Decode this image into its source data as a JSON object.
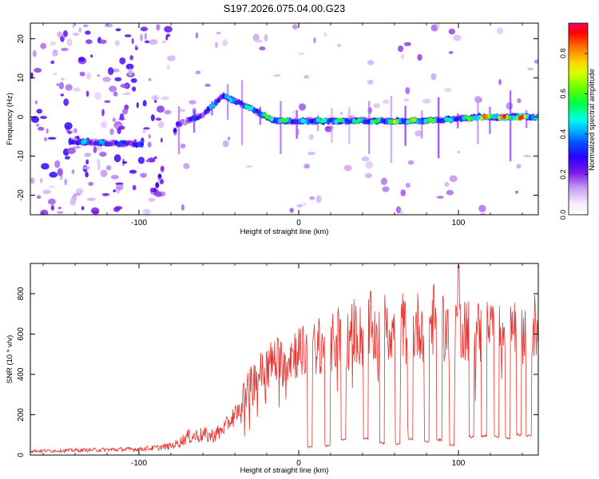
{
  "figure": {
    "title": "S197.2026.075.04.00.G23"
  },
  "chart_data": [
    {
      "type": "heatmap",
      "name": "spectrogram",
      "xlabel": "Height of straight line (km)",
      "ylabel": "Frequency (Hz)",
      "xlim": [
        -168,
        150
      ],
      "ylim": [
        -25,
        24
      ],
      "xticks": [
        -100,
        0,
        100
      ],
      "yticks": [
        -20,
        -10,
        0,
        10,
        20
      ],
      "colorbar": {
        "label": "Normalized spectral amplitude",
        "range": [
          0.0,
          0.95
        ],
        "ticks": [
          0.0,
          0.2,
          0.4,
          0.6,
          0.8
        ],
        "tick_labels": [
          "0.0",
          "0.2",
          "0.4",
          "0.6",
          "0.8"
        ]
      },
      "ridge": {
        "description_points": [
          {
            "x": -130,
            "y": -6.5,
            "a": 0.45
          },
          {
            "x": -95,
            "y": -7.0,
            "a": 0.35
          },
          {
            "x": -90,
            "y": -19.0,
            "a": 0.3
          },
          {
            "x": -76,
            "y": -2.0,
            "a": 0.3
          },
          {
            "x": -60,
            "y": 0.5,
            "a": 0.4
          },
          {
            "x": -47,
            "y": 5.5,
            "a": 0.5
          },
          {
            "x": -32,
            "y": 2.5,
            "a": 0.55
          },
          {
            "x": -15,
            "y": -1.0,
            "a": 0.7
          },
          {
            "x": 0,
            "y": -1.0,
            "a": 0.5
          },
          {
            "x": 20,
            "y": -1.0,
            "a": 0.6
          },
          {
            "x": 45,
            "y": -1.0,
            "a": 0.6
          },
          {
            "x": 60,
            "y": -1.0,
            "a": 0.7
          },
          {
            "x": 80,
            "y": -1.0,
            "a": 0.7
          },
          {
            "x": 100,
            "y": -0.5,
            "a": 0.5
          },
          {
            "x": 112,
            "y": 0.0,
            "a": 0.85
          },
          {
            "x": 138,
            "y": 0.0,
            "a": 0.95
          },
          {
            "x": 150,
            "y": 0.0,
            "a": 0.6
          }
        ]
      }
    },
    {
      "type": "line",
      "name": "snr",
      "xlabel": "Height of straight line (km)",
      "ylabel": "SNR (10 * v/v)",
      "xlim": [
        -168,
        150
      ],
      "ylim": [
        0,
        950
      ],
      "xticks": [
        -100,
        0,
        100
      ],
      "yticks": [
        0,
        200,
        400,
        600,
        800
      ],
      "color": "#e8322e",
      "series": [
        {
          "name": "SNR",
          "x": [
            -168,
            -150,
            -130,
            -110,
            -100,
            -90,
            -80,
            -75,
            -70,
            -60,
            -55,
            -50,
            -45,
            -40,
            -35,
            -32,
            -30,
            -25,
            -20,
            -15,
            -10,
            -5,
            0,
            5,
            10,
            15,
            20,
            25,
            30,
            35,
            40,
            45,
            50,
            55,
            60,
            65,
            70,
            75,
            80,
            85,
            90,
            95,
            100,
            105,
            110,
            115,
            120,
            125,
            130,
            135,
            140,
            145,
            150
          ],
          "values": [
            20,
            22,
            25,
            28,
            30,
            35,
            45,
            60,
            90,
            100,
            95,
            110,
            150,
            200,
            290,
            320,
            350,
            400,
            430,
            470,
            460,
            500,
            520,
            500,
            520,
            560,
            540,
            590,
            560,
            620,
            580,
            640,
            560,
            650,
            600,
            640,
            580,
            650,
            620,
            680,
            640,
            620,
            660,
            640,
            620,
            600,
            620,
            640,
            600,
            630,
            620,
            650,
            620
          ]
        }
      ],
      "dropouts": [
        {
          "x": 7,
          "floor": 40
        },
        {
          "x": 18,
          "floor": 45
        },
        {
          "x": 28,
          "floor": 75
        },
        {
          "x": 42,
          "floor": 80
        },
        {
          "x": 52,
          "floor": 60
        },
        {
          "x": 62,
          "floor": 55
        },
        {
          "x": 70,
          "floor": 80
        },
        {
          "x": 80,
          "floor": 65
        },
        {
          "x": 88,
          "floor": 75
        },
        {
          "x": 96,
          "floor": 50
        },
        {
          "x": 108,
          "floor": 90
        },
        {
          "x": 116,
          "floor": 95
        },
        {
          "x": 124,
          "floor": 90
        },
        {
          "x": 131,
          "floor": 85
        },
        {
          "x": 138,
          "floor": 100
        },
        {
          "x": 144,
          "floor": 95
        }
      ]
    }
  ]
}
